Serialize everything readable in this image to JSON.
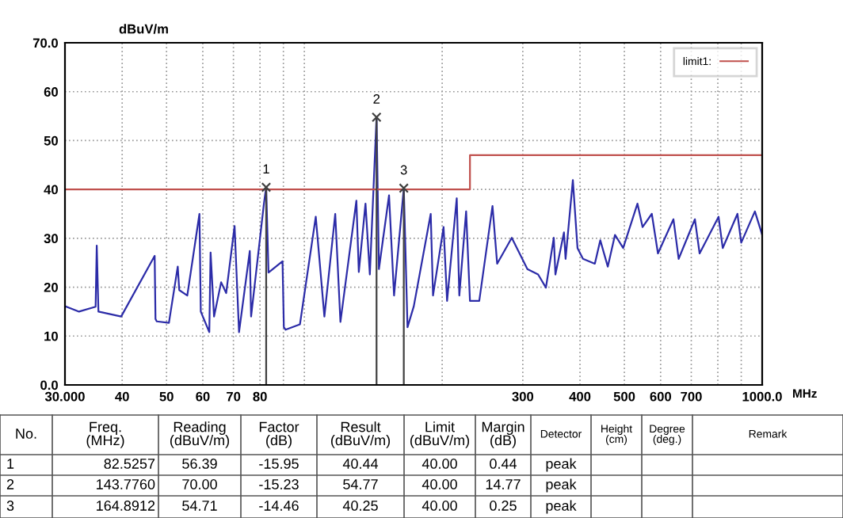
{
  "chart_data": {
    "type": "line",
    "xlabel": "MHz",
    "ylabel": "dBuV/m",
    "log": "x",
    "grid": true,
    "legend": "top right",
    "xlim": [
      30,
      1000
    ],
    "ylim": [
      0,
      70
    ],
    "xticks": [
      {
        "value": 30,
        "label": "30.000"
      },
      40,
      50,
      60,
      70,
      80,
      {
        "value": 90,
        "label": null
      },
      {
        "value": 100,
        "label": null
      },
      {
        "value": 200,
        "label": null
      },
      300,
      400,
      500,
      600,
      700,
      {
        "value": 800,
        "label": null
      },
      {
        "value": 900,
        "label": null
      },
      {
        "value": 1000,
        "label": "1000.0"
      }
    ],
    "yticks": [
      {
        "value": 0,
        "label": "0.0"
      },
      10,
      20,
      30,
      40,
      50,
      60,
      {
        "value": 70,
        "label": "70.0"
      }
    ],
    "series": [
      {
        "color": "#2c2ca8",
        "x": [
          30,
          32.2,
          35.0,
          35.2,
          35.5,
          39.8,
          47.1,
          47.3,
          47.6,
          50.6,
          52.9,
          53.3,
          55.5,
          59.0,
          59.4,
          62.0,
          62.4,
          63.5,
          65.8,
          67.5,
          70.4,
          72.0,
          76.0,
          76.5,
          81.6,
          82.5257,
          83.5,
          89.6,
          90.2,
          91.0,
          97.8,
          105.9,
          110.6,
          116.8,
          119.9,
          129.9,
          131.5,
          136.0,
          139.0,
          143.776,
          145.5,
          153.1,
          157.0,
          164.8912,
          168.0,
          173.4,
          188.8,
          191.0,
          201.4,
          205.0,
          215.2,
          218.0,
          225.6,
          230.0,
          241,
          257.6,
          263.7,
          283.8,
          307,
          324,
          337,
          350.6,
          353.5,
          369,
          372,
          385.9,
          395,
          406,
          431,
          443,
          460,
          477,
          497,
          534,
          548,
          574,
          592,
          640,
          657,
          713,
          730,
          803,
          820,
          883,
          900,
          964,
          1000
        ],
        "values": [
          16.1,
          15,
          16,
          28.5,
          15,
          14,
          26.4,
          13.5,
          13,
          12.7,
          24.2,
          19.4,
          18.3,
          35,
          15,
          10.8,
          27.1,
          14,
          21,
          18.8,
          32.5,
          10.8,
          27.4,
          14,
          37.1,
          40.44,
          23,
          25.3,
          11.8,
          11.3,
          12.4,
          34.4,
          14,
          35,
          12.9,
          37.7,
          23.1,
          37.1,
          22.6,
          54.77,
          23.7,
          38.8,
          18.3,
          40.25,
          11.8,
          16.1,
          35,
          18.3,
          32.3,
          17.2,
          38.2,
          18.3,
          35.5,
          17.2,
          17.2,
          36.6,
          24.8,
          30.1,
          23.7,
          22.6,
          19.9,
          30.1,
          22.6,
          31.2,
          25.8,
          41.9,
          28,
          25.8,
          24.8,
          29.6,
          24.2,
          30.7,
          28,
          37.1,
          32.3,
          35,
          26.9,
          33.9,
          25.8,
          33.9,
          26.9,
          34.4,
          28,
          35,
          29.1,
          35.5,
          30.7
        ]
      },
      {
        "name": "limit1:",
        "color": "#c0504d",
        "x": [
          30,
          230,
          230,
          1000
        ],
        "values": [
          40,
          40,
          47,
          47
        ]
      },
      {
        "type": "lollipop",
        "color": "#404040",
        "marker": "cross",
        "x": [
          82.5257,
          143.776,
          164.8912
        ],
        "values": [
          40.44,
          54.77,
          40.25
        ]
      }
    ],
    "annotations": [
      {
        "text": "1",
        "x": 82.5257,
        "y": 40.44
      },
      {
        "text": "2",
        "x": 143.776,
        "y": 54.77
      },
      {
        "text": "3",
        "x": 164.8912,
        "y": 40.25
      },
      "No.",
      "Freq.\n(MHz)",
      "Reading\n(dBuV/m)",
      "Factor\n(dB)",
      "Result\n(dBuV/m)",
      "Limit\n(dBuV/m)",
      "Margin\n(dB)",
      "Detector",
      "Height\n(cm)",
      "Degree\n(deg.)",
      "Remark",
      "1",
      "82.5257",
      "56.39",
      "-15.95",
      "40.44",
      "40.00",
      "0.44",
      "peak",
      "2",
      "143.7760",
      "70.00",
      "-15.23",
      "54.77",
      "40.00",
      "14.77",
      "peak",
      "3",
      "164.8912",
      "54.71",
      "-14.46",
      "40.25",
      "40.00",
      "0.25",
      "peak"
    ]
  }
}
